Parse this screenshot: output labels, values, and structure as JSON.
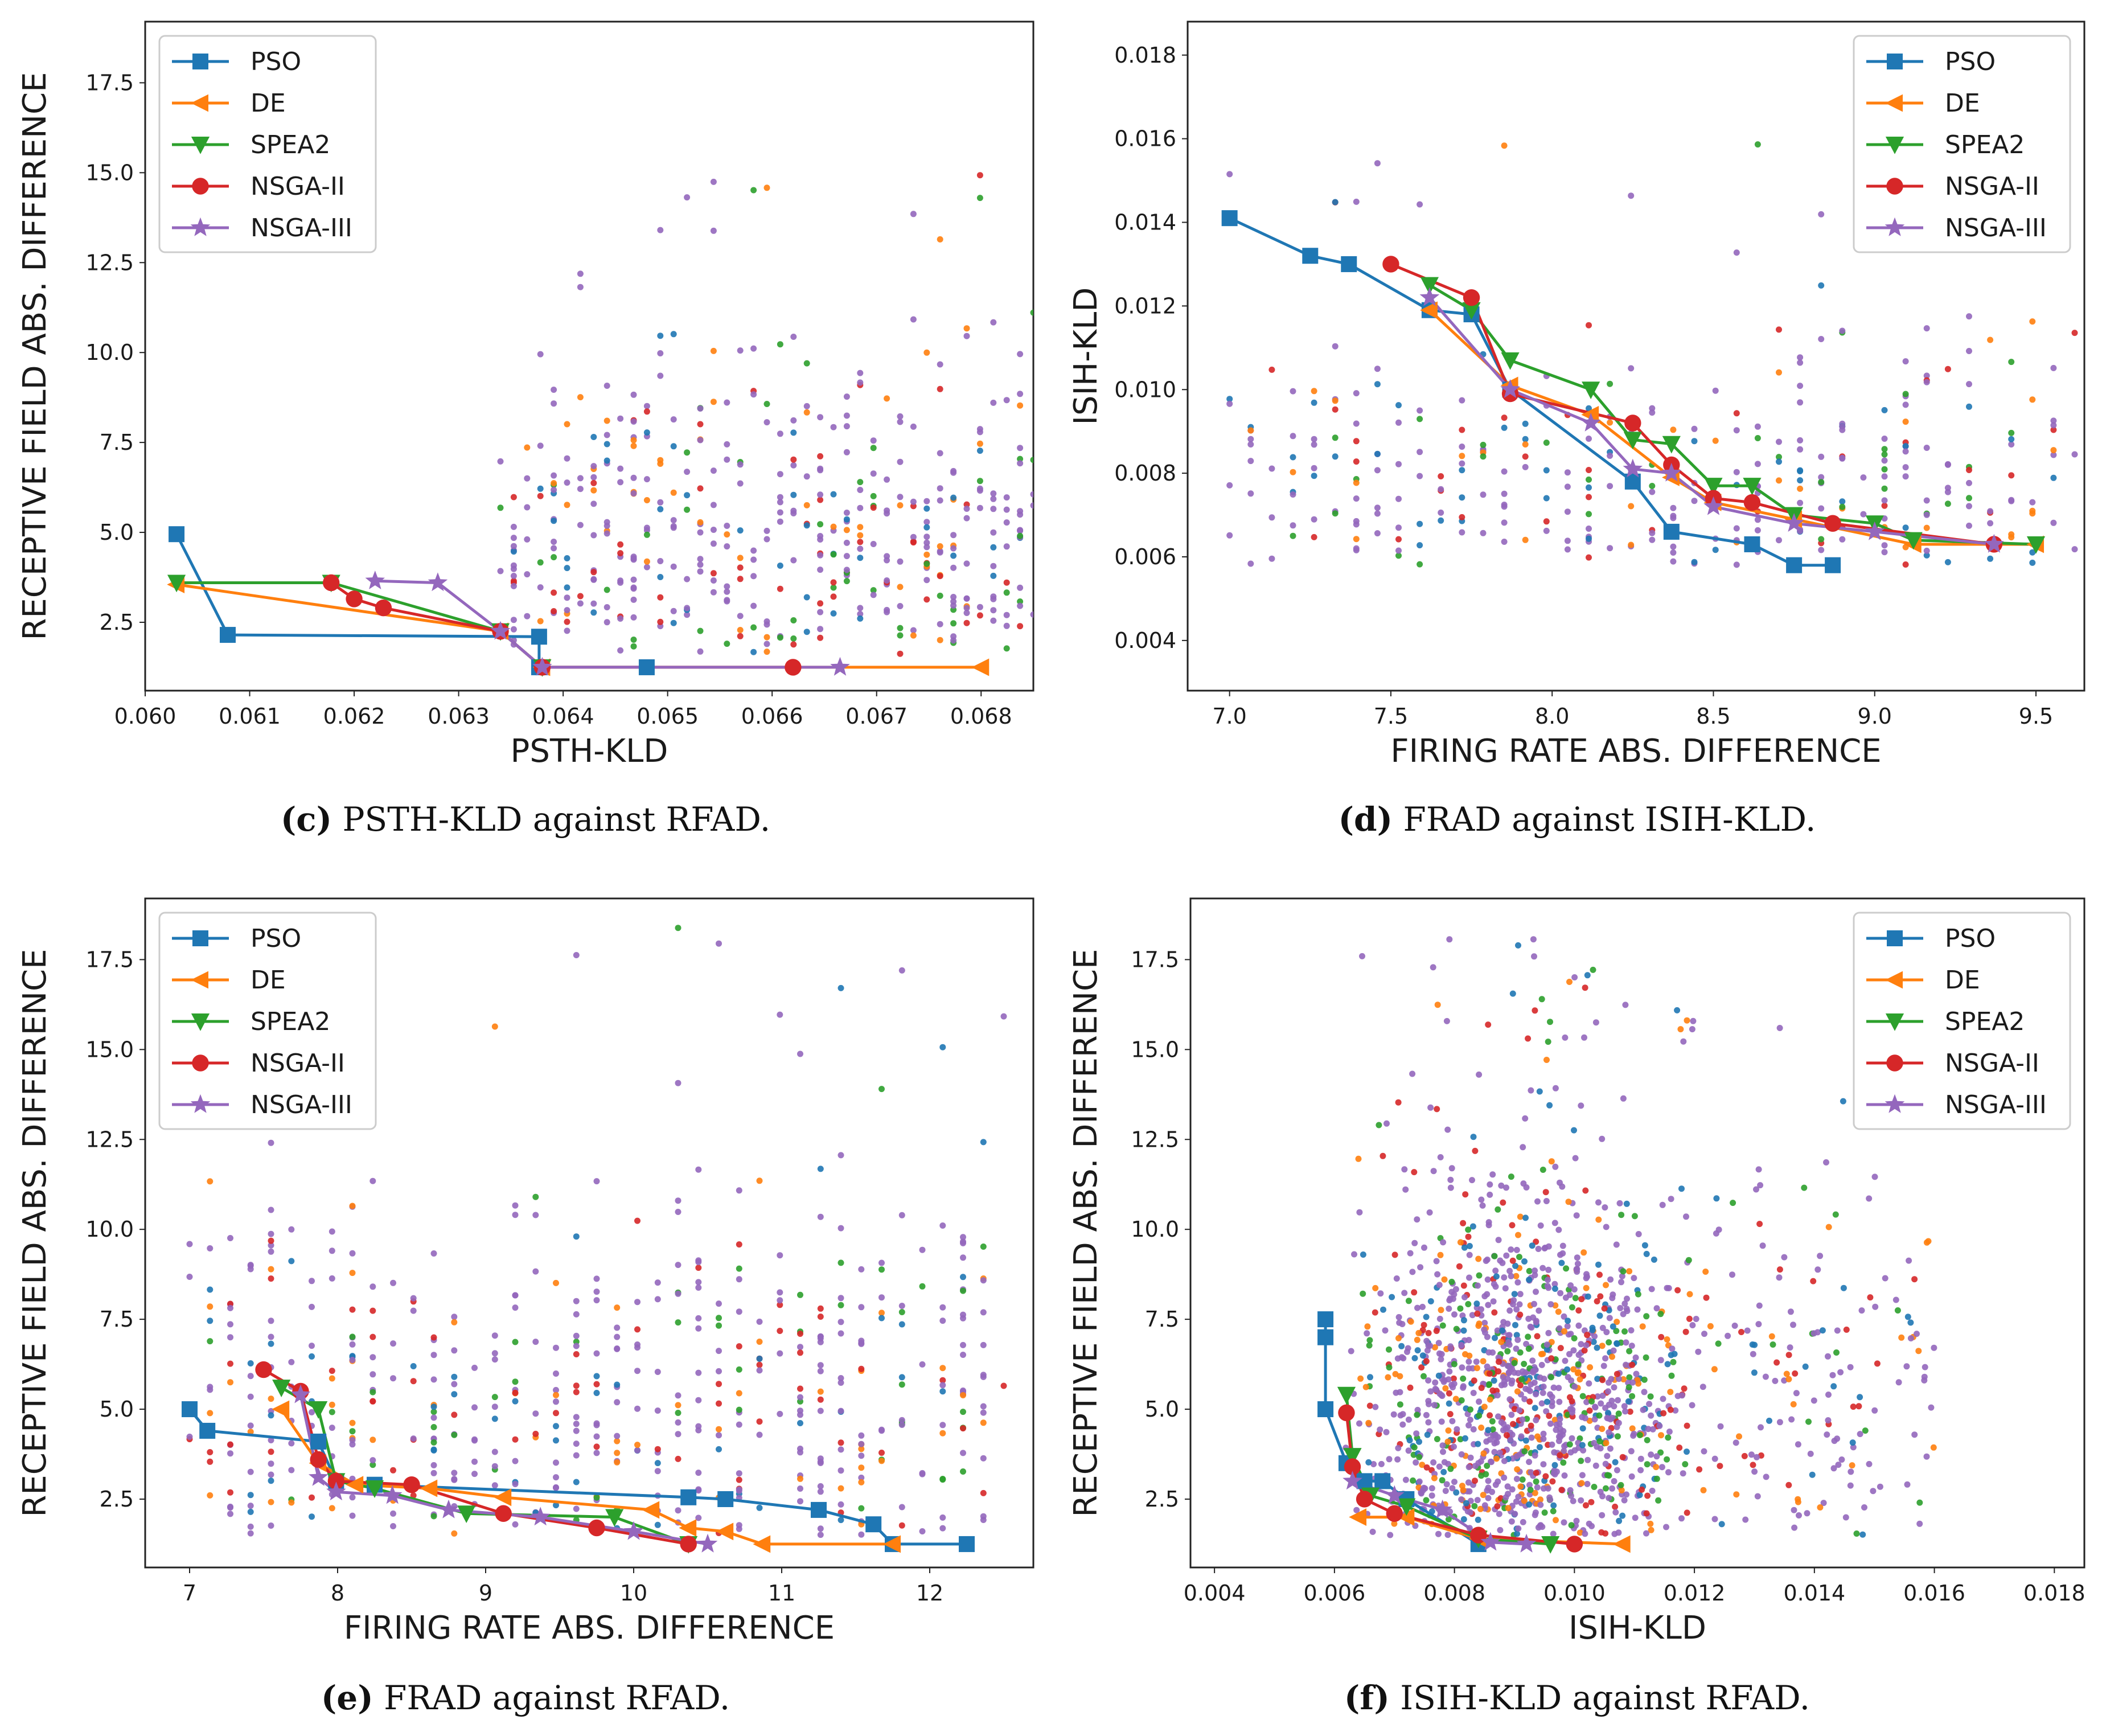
{
  "series_styles": [
    {
      "name": "PSO",
      "color": "#1f77b4",
      "marker": "square"
    },
    {
      "name": "DE",
      "color": "#ff7f0e",
      "marker": "triangle-left"
    },
    {
      "name": "SPEA2",
      "color": "#2ca02c",
      "marker": "triangle-down"
    },
    {
      "name": "NSGA-II",
      "color": "#d62728",
      "marker": "circle"
    },
    {
      "name": "NSGA-III",
      "color": "#9467bd",
      "marker": "star"
    }
  ],
  "chart_data": [
    {
      "id": "c",
      "type": "line",
      "caption_label": "(c)",
      "caption_text": "PSTH-KLD against RFAD.",
      "xlabel": "PSTH-KLD",
      "ylabel": "RECEPTIVE FIELD ABS. DIFFERENCE",
      "xlim": [
        0.06,
        0.0685
      ],
      "ylim": [
        0.6,
        19.2
      ],
      "xticks": [
        0.06,
        0.061,
        0.062,
        0.063,
        0.064,
        0.065,
        0.066,
        0.067,
        0.068
      ],
      "xtick_labels": [
        "0.060",
        "0.061",
        "0.062",
        "0.063",
        "0.064",
        "0.065",
        "0.066",
        "0.067",
        "0.068"
      ],
      "yticks": [
        2.5,
        5.0,
        7.5,
        10.0,
        12.5,
        15.0,
        17.5
      ],
      "ytick_labels": [
        "2.5",
        "5.0",
        "7.5",
        "10.0",
        "12.5",
        "15.0",
        "17.5"
      ],
      "legend_position": "top-left",
      "cloud": {
        "xmin": 0.0634,
        "xmax": 0.0685,
        "ymin": 1.6,
        "ymax": 15.7,
        "count": 520,
        "ymode": 4.5,
        "sparse_left": 0.0614
      },
      "series": [
        {
          "name": "PSO",
          "points": [
            [
              0.0603,
              4.95
            ],
            [
              0.06079,
              2.15
            ],
            [
              0.06377,
              2.1
            ],
            [
              0.06377,
              1.25
            ],
            [
              0.0648,
              1.25
            ]
          ]
        },
        {
          "name": "DE",
          "points": [
            [
              0.0603,
              3.55
            ],
            [
              0.0634,
              2.25
            ],
            [
              0.0638,
              1.25
            ],
            [
              0.068,
              1.25
            ]
          ]
        },
        {
          "name": "SPEA2",
          "points": [
            [
              0.0603,
              3.6
            ],
            [
              0.06178,
              3.6
            ],
            [
              0.0634,
              2.25
            ],
            [
              0.0638,
              1.25
            ]
          ]
        },
        {
          "name": "NSGA-II",
          "points": [
            [
              0.06178,
              3.6
            ],
            [
              0.062,
              3.15
            ],
            [
              0.06228,
              2.9
            ],
            [
              0.0634,
              2.25
            ],
            [
              0.0638,
              1.25
            ],
            [
              0.0662,
              1.25
            ]
          ]
        },
        {
          "name": "NSGA-III",
          "points": [
            [
              0.0622,
              3.65
            ],
            [
              0.0628,
              3.6
            ],
            [
              0.0634,
              2.25
            ],
            [
              0.0638,
              1.25
            ],
            [
              0.06665,
              1.25
            ]
          ]
        }
      ]
    },
    {
      "id": "d",
      "type": "line",
      "caption_label": "(d)",
      "caption_text": "FRAD against ISIH-KLD.",
      "xlabel": "FIRING RATE ABS. DIFFERENCE",
      "ylabel": "ISIH-KLD",
      "xlim": [
        6.87,
        9.65
      ],
      "ylim": [
        0.0028,
        0.0188
      ],
      "xticks": [
        7.0,
        7.5,
        8.0,
        8.5,
        9.0,
        9.5
      ],
      "xtick_labels": [
        "7.0",
        "7.5",
        "8.0",
        "8.5",
        "9.0",
        "9.5"
      ],
      "yticks": [
        0.004,
        0.006,
        0.008,
        0.01,
        0.012,
        0.014,
        0.016,
        0.018
      ],
      "ytick_labels": [
        "0.004",
        "0.006",
        "0.008",
        "0.010",
        "0.012",
        "0.014",
        "0.016",
        "0.018"
      ],
      "legend_position": "top-right",
      "cloud": {
        "xmin": 7.0,
        "xmax": 9.62,
        "ymin": 0.0058,
        "ymax": 0.0159,
        "count": 420,
        "ymode": 0.0075,
        "sparse_left": 0
      },
      "series": [
        {
          "name": "PSO",
          "points": [
            [
              7.0,
              0.0141
            ],
            [
              7.25,
              0.0132
            ],
            [
              7.37,
              0.013
            ],
            [
              7.62,
              0.0119
            ],
            [
              7.75,
              0.0118
            ],
            [
              7.87,
              0.01
            ],
            [
              8.25,
              0.0078
            ],
            [
              8.37,
              0.0066
            ],
            [
              8.62,
              0.0063
            ],
            [
              8.75,
              0.0058
            ],
            [
              8.87,
              0.0058
            ]
          ]
        },
        {
          "name": "DE",
          "points": [
            [
              7.62,
              0.0119
            ],
            [
              7.87,
              0.0101
            ],
            [
              8.12,
              0.0094
            ],
            [
              8.37,
              0.0079
            ],
            [
              8.5,
              0.0073
            ],
            [
              8.75,
              0.0069
            ],
            [
              9.12,
              0.0063
            ],
            [
              9.5,
              0.0063
            ]
          ]
        },
        {
          "name": "SPEA2",
          "points": [
            [
              7.62,
              0.0125
            ],
            [
              7.75,
              0.0119
            ],
            [
              7.87,
              0.0107
            ],
            [
              8.12,
              0.01
            ],
            [
              8.25,
              0.0088
            ],
            [
              8.37,
              0.0087
            ],
            [
              8.5,
              0.0077
            ],
            [
              8.62,
              0.0077
            ],
            [
              8.75,
              0.007
            ],
            [
              9.0,
              0.0068
            ],
            [
              9.12,
              0.0064
            ],
            [
              9.5,
              0.0063
            ]
          ]
        },
        {
          "name": "NSGA-II",
          "points": [
            [
              7.5,
              0.013
            ],
            [
              7.75,
              0.0122
            ],
            [
              7.87,
              0.0099
            ],
            [
              8.25,
              0.0092
            ],
            [
              8.37,
              0.0082
            ],
            [
              8.5,
              0.0074
            ],
            [
              8.62,
              0.0073
            ],
            [
              8.87,
              0.0068
            ],
            [
              9.37,
              0.0063
            ]
          ]
        },
        {
          "name": "NSGA-III",
          "points": [
            [
              7.62,
              0.0122
            ],
            [
              7.87,
              0.01
            ],
            [
              8.12,
              0.0092
            ],
            [
              8.25,
              0.0081
            ],
            [
              8.37,
              0.008
            ],
            [
              8.5,
              0.0072
            ],
            [
              8.75,
              0.0068
            ],
            [
              9.0,
              0.0066
            ],
            [
              9.37,
              0.0063
            ]
          ]
        }
      ]
    },
    {
      "id": "e",
      "type": "line",
      "caption_label": "(e)",
      "caption_text": "FRAD against RFAD.",
      "xlabel": "FIRING RATE ABS. DIFFERENCE",
      "ylabel": "RECEPTIVE FIELD ABS. DIFFERENCE",
      "xlim": [
        6.7,
        12.7
      ],
      "ylim": [
        0.6,
        19.2
      ],
      "xticks": [
        7,
        8,
        9,
        10,
        11,
        12
      ],
      "xtick_labels": [
        "7",
        "8",
        "9",
        "10",
        "11",
        "12"
      ],
      "yticks": [
        2.5,
        5.0,
        7.5,
        10.0,
        12.5,
        15.0,
        17.5
      ],
      "ytick_labels": [
        "2.5",
        "5.0",
        "7.5",
        "10.0",
        "12.5",
        "15.0",
        "17.5"
      ],
      "legend_position": "top-left",
      "cloud": {
        "xmin": 7.0,
        "xmax": 12.5,
        "ymin": 1.5,
        "ymax": 18.4,
        "count": 620,
        "ymode": 4.8,
        "sparse_left": 0
      },
      "series": [
        {
          "name": "PSO",
          "points": [
            [
              7.0,
              5.0
            ],
            [
              7.12,
              4.4
            ],
            [
              7.87,
              4.1
            ],
            [
              7.99,
              3.0
            ],
            [
              8.25,
              2.9
            ],
            [
              10.37,
              2.55
            ],
            [
              10.62,
              2.5
            ],
            [
              11.25,
              2.2
            ],
            [
              11.62,
              1.8
            ],
            [
              11.75,
              1.25
            ],
            [
              12.25,
              1.25
            ]
          ]
        },
        {
          "name": "DE",
          "points": [
            [
              7.62,
              5.0
            ],
            [
              7.87,
              3.5
            ],
            [
              8.12,
              2.9
            ],
            [
              8.62,
              2.8
            ],
            [
              9.12,
              2.55
            ],
            [
              10.12,
              2.2
            ],
            [
              10.37,
              1.7
            ],
            [
              10.62,
              1.6
            ],
            [
              10.87,
              1.25
            ],
            [
              11.75,
              1.25
            ]
          ]
        },
        {
          "name": "SPEA2",
          "points": [
            [
              7.62,
              5.6
            ],
            [
              7.87,
              5.0
            ],
            [
              7.99,
              3.0
            ],
            [
              8.25,
              2.8
            ],
            [
              8.87,
              2.1
            ],
            [
              9.87,
              2.0
            ],
            [
              10.37,
              1.25
            ]
          ]
        },
        {
          "name": "NSGA-II",
          "points": [
            [
              7.5,
              6.1
            ],
            [
              7.75,
              5.5
            ],
            [
              7.87,
              3.6
            ],
            [
              7.99,
              3.0
            ],
            [
              8.5,
              2.9
            ],
            [
              9.12,
              2.1
            ],
            [
              9.75,
              1.7
            ],
            [
              10.37,
              1.25
            ]
          ]
        },
        {
          "name": "NSGA-III",
          "points": [
            [
              7.75,
              5.4
            ],
            [
              7.87,
              3.1
            ],
            [
              7.99,
              2.7
            ],
            [
              8.37,
              2.6
            ],
            [
              8.75,
              2.2
            ],
            [
              9.37,
              2.0
            ],
            [
              10.0,
              1.6
            ],
            [
              10.5,
              1.25
            ]
          ]
        }
      ]
    },
    {
      "id": "f",
      "type": "line",
      "caption_label": "(f)",
      "caption_text": "ISIH-KLD against RFAD.",
      "xlabel": "ISIH-KLD",
      "ylabel": "RECEPTIVE FIELD ABS. DIFFERENCE",
      "xlim": [
        0.0036,
        0.0185
      ],
      "ylim": [
        0.6,
        19.2
      ],
      "xticks": [
        0.004,
        0.006,
        0.008,
        0.01,
        0.012,
        0.014,
        0.016,
        0.018
      ],
      "xtick_labels": [
        "0.004",
        "0.006",
        "0.008",
        "0.010",
        "0.012",
        "0.014",
        "0.016",
        "0.018"
      ],
      "yticks": [
        2.5,
        5.0,
        7.5,
        10.0,
        12.5,
        15.0,
        17.5
      ],
      "ytick_labels": [
        "2.5",
        "5.0",
        "7.5",
        "10.0",
        "12.5",
        "15.0",
        "17.5"
      ],
      "legend_position": "top-right",
      "cloud": {
        "xmin": 0.006,
        "xmax": 0.0122,
        "ymin": 1.5,
        "ymax": 18.4,
        "count": 1700,
        "ymode": 5.0,
        "sparse_left": 0
      },
      "series": [
        {
          "name": "PSO",
          "points": [
            [
              0.00585,
              7.5
            ],
            [
              0.00585,
              7.0
            ],
            [
              0.00585,
              5.0
            ],
            [
              0.0062,
              3.5
            ],
            [
              0.0065,
              3.0
            ],
            [
              0.0068,
              3.0
            ],
            [
              0.0072,
              2.5
            ],
            [
              0.0084,
              1.25
            ]
          ]
        },
        {
          "name": "DE",
          "points": [
            [
              0.0064,
              2.0
            ],
            [
              0.0072,
              2.0
            ],
            [
              0.0084,
              1.4
            ],
            [
              0.0108,
              1.25
            ]
          ]
        },
        {
          "name": "SPEA2",
          "points": [
            [
              0.0062,
              5.4
            ],
            [
              0.0063,
              3.7
            ],
            [
              0.0066,
              2.6
            ],
            [
              0.0072,
              2.3
            ],
            [
              0.0084,
              1.4
            ],
            [
              0.0096,
              1.25
            ]
          ]
        },
        {
          "name": "NSGA-II",
          "points": [
            [
              0.0062,
              4.9
            ],
            [
              0.0063,
              3.4
            ],
            [
              0.0065,
              2.5
            ],
            [
              0.007,
              2.1
            ],
            [
              0.0084,
              1.5
            ],
            [
              0.01,
              1.25
            ]
          ]
        },
        {
          "name": "NSGA-III",
          "points": [
            [
              0.0063,
              3.0
            ],
            [
              0.007,
              2.6
            ],
            [
              0.0078,
              2.2
            ],
            [
              0.0086,
              1.3
            ],
            [
              0.0092,
              1.25
            ]
          ]
        }
      ]
    }
  ]
}
